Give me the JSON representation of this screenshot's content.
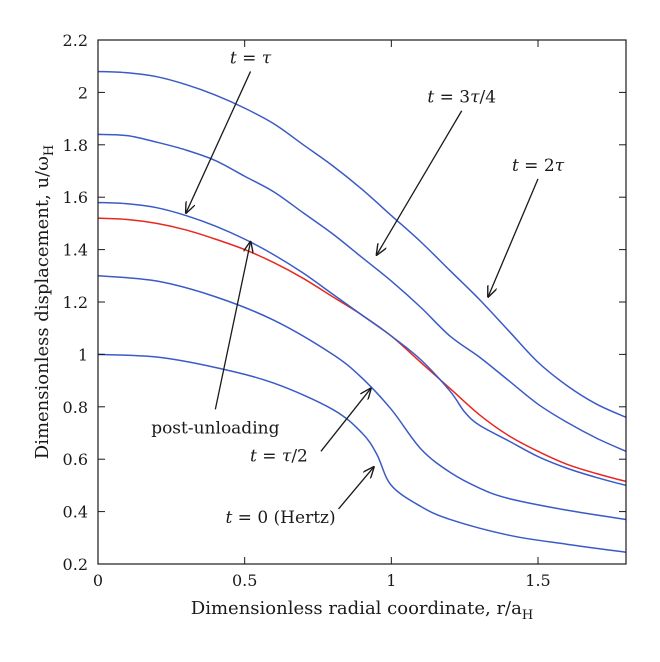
{
  "chart_data": {
    "type": "line",
    "xlabel": "Dimensionless radial coordinate, r/a",
    "xlabel_sub": "H",
    "ylabel": "Dimensionless displacement, u/ω",
    "ylabel_sub": "H",
    "xlim": [
      0,
      1.8
    ],
    "ylim": [
      0.2,
      2.2
    ],
    "grid": false,
    "x_ticks": [
      {
        "value": 0,
        "label": "0"
      },
      {
        "value": 0.5,
        "label": "0.5"
      },
      {
        "value": 1,
        "label": "1"
      },
      {
        "value": 1.5,
        "label": "1.5"
      }
    ],
    "y_ticks": [
      {
        "value": 0.2,
        "label": "0.2"
      },
      {
        "value": 0.4,
        "label": "0.4"
      },
      {
        "value": 0.6,
        "label": "0.6"
      },
      {
        "value": 0.8,
        "label": "0.8"
      },
      {
        "value": 1.0,
        "label": "1"
      },
      {
        "value": 1.2,
        "label": "1.2"
      },
      {
        "value": 1.4,
        "label": "1.4"
      },
      {
        "value": 1.6,
        "label": "1.6"
      },
      {
        "value": 1.8,
        "label": "1.8"
      },
      {
        "value": 2.0,
        "label": "2"
      },
      {
        "value": 2.2,
        "label": "2.2"
      }
    ],
    "colors": {
      "blue": "#3a5bc7",
      "red": "#e8281e",
      "axis": "#1a1a1a"
    },
    "series": [
      {
        "name": "t = 0 (Hertz)",
        "color": "#3a5bc7",
        "x": [
          0,
          0.2,
          0.4,
          0.6,
          0.8,
          0.9,
          0.95,
          1.0,
          1.1,
          1.2,
          1.4,
          1.6,
          1.8
        ],
        "y": [
          1.0,
          0.99,
          0.95,
          0.89,
          0.79,
          0.7,
          0.62,
          0.5,
          0.42,
          0.37,
          0.31,
          0.275,
          0.245
        ]
      },
      {
        "name": "t = τ/2",
        "color": "#3a5bc7",
        "x": [
          0,
          0.2,
          0.4,
          0.6,
          0.8,
          0.9,
          1.0,
          1.1,
          1.2,
          1.3,
          1.4,
          1.6,
          1.8
        ],
        "y": [
          1.3,
          1.28,
          1.22,
          1.13,
          1.0,
          0.91,
          0.79,
          0.64,
          0.55,
          0.49,
          0.45,
          0.405,
          0.37
        ]
      },
      {
        "name": "post-unloading",
        "color": "#e8281e",
        "x": [
          0,
          0.1,
          0.2,
          0.3,
          0.4,
          0.5,
          0.6,
          0.7,
          0.8,
          0.9,
          1.0,
          1.1,
          1.2,
          1.3,
          1.4,
          1.5,
          1.6,
          1.7,
          1.8
        ],
        "y": [
          1.52,
          1.515,
          1.5,
          1.475,
          1.44,
          1.4,
          1.35,
          1.29,
          1.22,
          1.15,
          1.07,
          0.97,
          0.87,
          0.77,
          0.69,
          0.63,
          0.58,
          0.545,
          0.515
        ]
      },
      {
        "name": "t = τ",
        "color": "#3a5bc7",
        "x": [
          0,
          0.1,
          0.2,
          0.3,
          0.4,
          0.5,
          0.6,
          0.7,
          0.8,
          0.9,
          1.0,
          1.1,
          1.2,
          1.25,
          1.3,
          1.4,
          1.5,
          1.6,
          1.7,
          1.8
        ],
        "y": [
          1.58,
          1.575,
          1.56,
          1.53,
          1.49,
          1.44,
          1.38,
          1.31,
          1.23,
          1.15,
          1.07,
          0.98,
          0.86,
          0.78,
          0.73,
          0.67,
          0.61,
          0.565,
          0.53,
          0.5
        ]
      },
      {
        "name": "t = 3τ/4",
        "color": "#3a5bc7",
        "x": [
          0,
          0.1,
          0.2,
          0.3,
          0.4,
          0.5,
          0.6,
          0.7,
          0.8,
          0.9,
          1.0,
          1.1,
          1.2,
          1.3,
          1.4,
          1.5,
          1.6,
          1.7,
          1.8
        ],
        "y": [
          1.84,
          1.835,
          1.81,
          1.78,
          1.74,
          1.68,
          1.62,
          1.54,
          1.46,
          1.37,
          1.28,
          1.18,
          1.07,
          0.99,
          0.9,
          0.81,
          0.74,
          0.68,
          0.63
        ]
      },
      {
        "name": "t = 2τ",
        "color": "#3a5bc7",
        "x": [
          0,
          0.1,
          0.2,
          0.3,
          0.4,
          0.5,
          0.6,
          0.7,
          0.8,
          0.9,
          1.0,
          1.1,
          1.2,
          1.3,
          1.4,
          1.5,
          1.6,
          1.7,
          1.8
        ],
        "y": [
          2.08,
          2.075,
          2.06,
          2.03,
          1.99,
          1.94,
          1.88,
          1.8,
          1.72,
          1.63,
          1.53,
          1.43,
          1.32,
          1.21,
          1.09,
          0.97,
          0.88,
          0.81,
          0.76
        ]
      }
    ],
    "annotations": [
      {
        "id": "t-tau",
        "parts": [
          {
            "t": "t",
            "i": true
          },
          {
            "t": " = "
          },
          {
            "t": "τ",
            "i": true
          }
        ],
        "tip": [
          0.3,
          1.54
        ],
        "tail": [
          0.52,
          2.08
        ]
      },
      {
        "id": "t-3tau4",
        "parts": [
          {
            "t": "t",
            "i": true
          },
          {
            "t": " = 3"
          },
          {
            "t": "τ",
            "i": true
          },
          {
            "t": "/4"
          }
        ],
        "tip": [
          0.95,
          1.38
        ],
        "tail": [
          1.24,
          1.93
        ]
      },
      {
        "id": "t-2tau",
        "parts": [
          {
            "t": "t",
            "i": true
          },
          {
            "t": " = 2"
          },
          {
            "t": "τ",
            "i": true
          }
        ],
        "tip": [
          1.33,
          1.22
        ],
        "tail": [
          1.5,
          1.67
        ]
      },
      {
        "id": "post-unloading",
        "parts": [
          {
            "t": "post-unloading"
          }
        ],
        "tip": [
          0.52,
          1.43
        ],
        "tail": [
          0.4,
          0.79
        ]
      },
      {
        "id": "t-tau2",
        "parts": [
          {
            "t": "t",
            "i": true
          },
          {
            "t": " = "
          },
          {
            "t": "τ",
            "i": true
          },
          {
            "t": "/2"
          }
        ],
        "tip": [
          0.93,
          0.87
        ],
        "tail": [
          0.76,
          0.63
        ]
      },
      {
        "id": "t-0-hertz",
        "parts": [
          {
            "t": "t",
            "i": true
          },
          {
            "t": " = 0 (Hertz)"
          }
        ],
        "tip": [
          0.94,
          0.57
        ],
        "tail": [
          0.82,
          0.41
        ]
      }
    ]
  }
}
